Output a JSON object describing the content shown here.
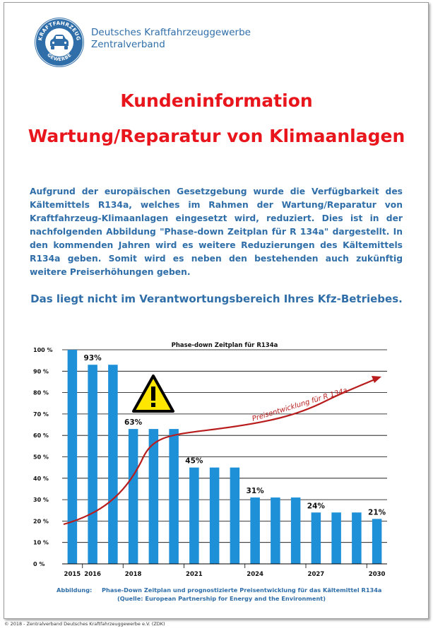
{
  "header": {
    "org_line1": "Deutsches Kraftfahrzeuggewerbe",
    "org_line2": "Zentralverband",
    "logo_top_text": "KRAFTFAHRZEUG",
    "logo_bottom_text": "GEWERBE"
  },
  "title": {
    "line1": "Kundeninformation",
    "line2": "Wartung/Reparatur von Klimaanlagen"
  },
  "intro_text": "Aufgrund der europäischen Gesetzgebung wurde die Verfügbarkeit des Kältemittels R134a, welches im Rahmen der Wartung/Reparatur von Kraftfahrzeug-Klimaanlagen eingesetzt wird, reduziert. Dies ist in der nachfolgenden Abbildung \"Phase-down Zeitplan für R 134a\" dargestellt. In den kommenden Jahren wird es weitere Reduzierungen des Kältemittels R134a geben. Somit wird es neben den bestehenden auch zukünftig weitere Preiserhöhungen geben.",
  "notice_text": "Das liegt nicht im Verantwortungsbereich Ihres Kfz-Betriebes.",
  "chart_data": {
    "type": "bar",
    "title": "Phase-down Zeitplan für R134a",
    "categories": [
      "2015",
      "2016",
      "2017",
      "2018",
      "2019",
      "2020",
      "2021",
      "2022",
      "2023",
      "2024",
      "2025",
      "2026",
      "2027",
      "2028",
      "2029",
      "2030"
    ],
    "x_tick_labels": [
      "2015",
      "2016",
      "",
      "2018",
      "",
      "",
      "2021",
      "",
      "",
      "2024",
      "",
      "",
      "2027",
      "",
      "",
      "2030"
    ],
    "values": [
      100,
      93,
      93,
      63,
      63,
      63,
      45,
      45,
      45,
      31,
      31,
      31,
      24,
      24,
      24,
      21
    ],
    "data_labels": [
      {
        "index": 1,
        "text": "93%"
      },
      {
        "index": 3,
        "text": "63%"
      },
      {
        "index": 6,
        "text": "45%"
      },
      {
        "index": 9,
        "text": "31%"
      },
      {
        "index": 12,
        "text": "24%"
      },
      {
        "index": 15,
        "text": "21%"
      }
    ],
    "ylim": [
      0,
      100
    ],
    "y_ticks": [
      0,
      10,
      20,
      30,
      40,
      50,
      60,
      70,
      80,
      90,
      100
    ],
    "y_tick_labels": [
      "0 %",
      "10 %",
      "20 %",
      "30 %",
      "40 %",
      "50 %",
      "60 %",
      "70 %",
      "80 %",
      "90 %",
      "100 %"
    ],
    "grid": true,
    "bar_color": "#1e90d8",
    "price_curve_label": "Preisentwicklung für R 134a",
    "price_curve_color": "#b81c1c",
    "warning_icon": "warning-triangle-icon"
  },
  "caption": {
    "label": "Abbildung:",
    "text": "Phase-Down Zeitplan und prognostizierte Preisentwicklung für das Kältemittel R134a",
    "source": "(Quelle: European Partnership for Energy and the Environment)"
  },
  "footer_text": "© 2018 - Zentralverband Deutsches Kraftfahrzeuggewerbe e.V. (ZDK)",
  "colors": {
    "title_red": "#e8161c",
    "text_blue": "#2f6ea8"
  }
}
